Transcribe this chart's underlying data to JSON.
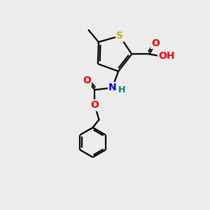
{
  "background_color": "#ececec",
  "atom_colors": {
    "S": "#b8b800",
    "N": "#0000ff",
    "O": "#ff0000",
    "C": "#000000",
    "H": "#008080"
  },
  "bond_color": "#000000",
  "bond_width": 1.6,
  "font_size_atom": 10,
  "font_size_h": 9
}
